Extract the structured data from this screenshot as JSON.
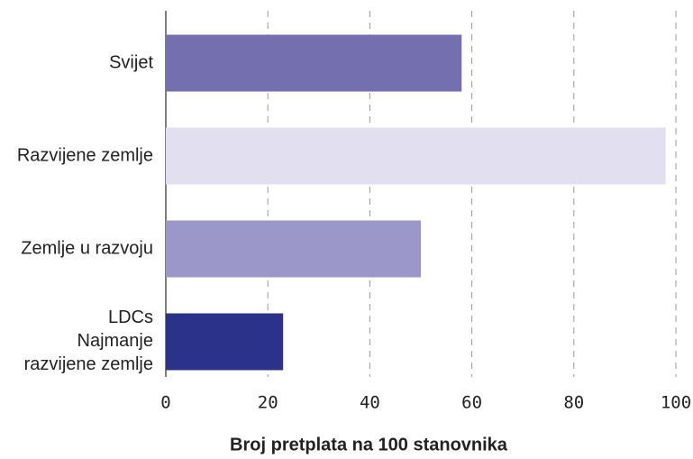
{
  "chart_data": {
    "type": "bar",
    "orientation": "horizontal",
    "x_label": "Broj pretplata na 100 stanovnika",
    "categories": [
      "Svijet",
      "Razvijene zemlje",
      "Zemlje u razvoju",
      "LDCs\nNajmanje\nrazvijene zemlje"
    ],
    "values": [
      58,
      98,
      50,
      23
    ],
    "colors": [
      "#7470b0",
      "#e1dff0",
      "#9b97c9",
      "#2b328a"
    ],
    "xlim": [
      0,
      100
    ],
    "xticks": [
      0,
      20,
      40,
      60,
      80,
      100
    ],
    "grid": true
  }
}
